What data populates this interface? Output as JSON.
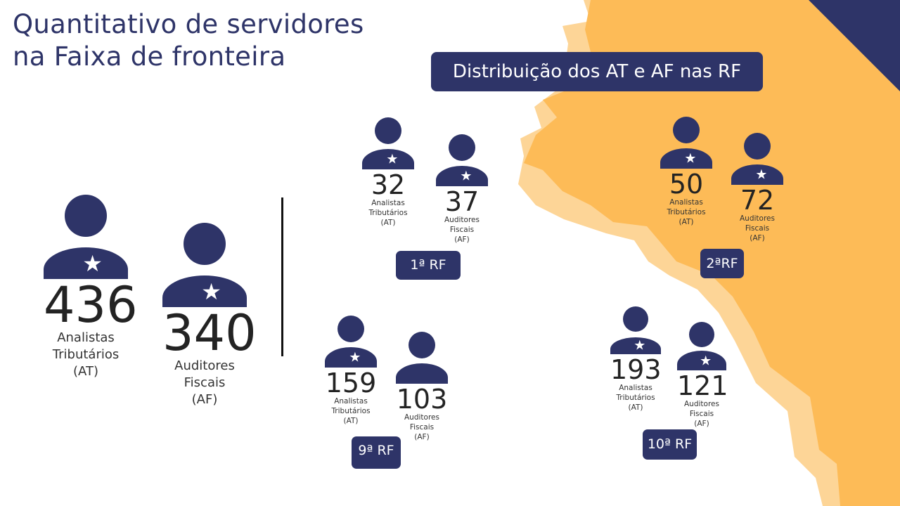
{
  "title_line1": "Quantitativo de servidores",
  "title_line2": "na Faixa de fronteira",
  "banner": "Distribuição dos AT e AF nas RF",
  "colors": {
    "navy": "#2e3468",
    "orange": "#fdbb57",
    "light_orange": "#fdd597"
  },
  "labels": {
    "at1": "Analistas",
    "at2": "Tributários",
    "at3": "(AT)",
    "af1": "Auditores",
    "af2": "Fiscais",
    "af3": "(AF)"
  },
  "total": {
    "at": "436",
    "af": "340"
  },
  "regions": [
    {
      "name": "1ª RF",
      "at": "32",
      "af": "37"
    },
    {
      "name": "2ªRF",
      "at": "50",
      "af": "72"
    },
    {
      "name": "9ª RF",
      "at": "159",
      "af": "103"
    },
    {
      "name": "10ª RF",
      "at": "193",
      "af": "121"
    }
  ]
}
